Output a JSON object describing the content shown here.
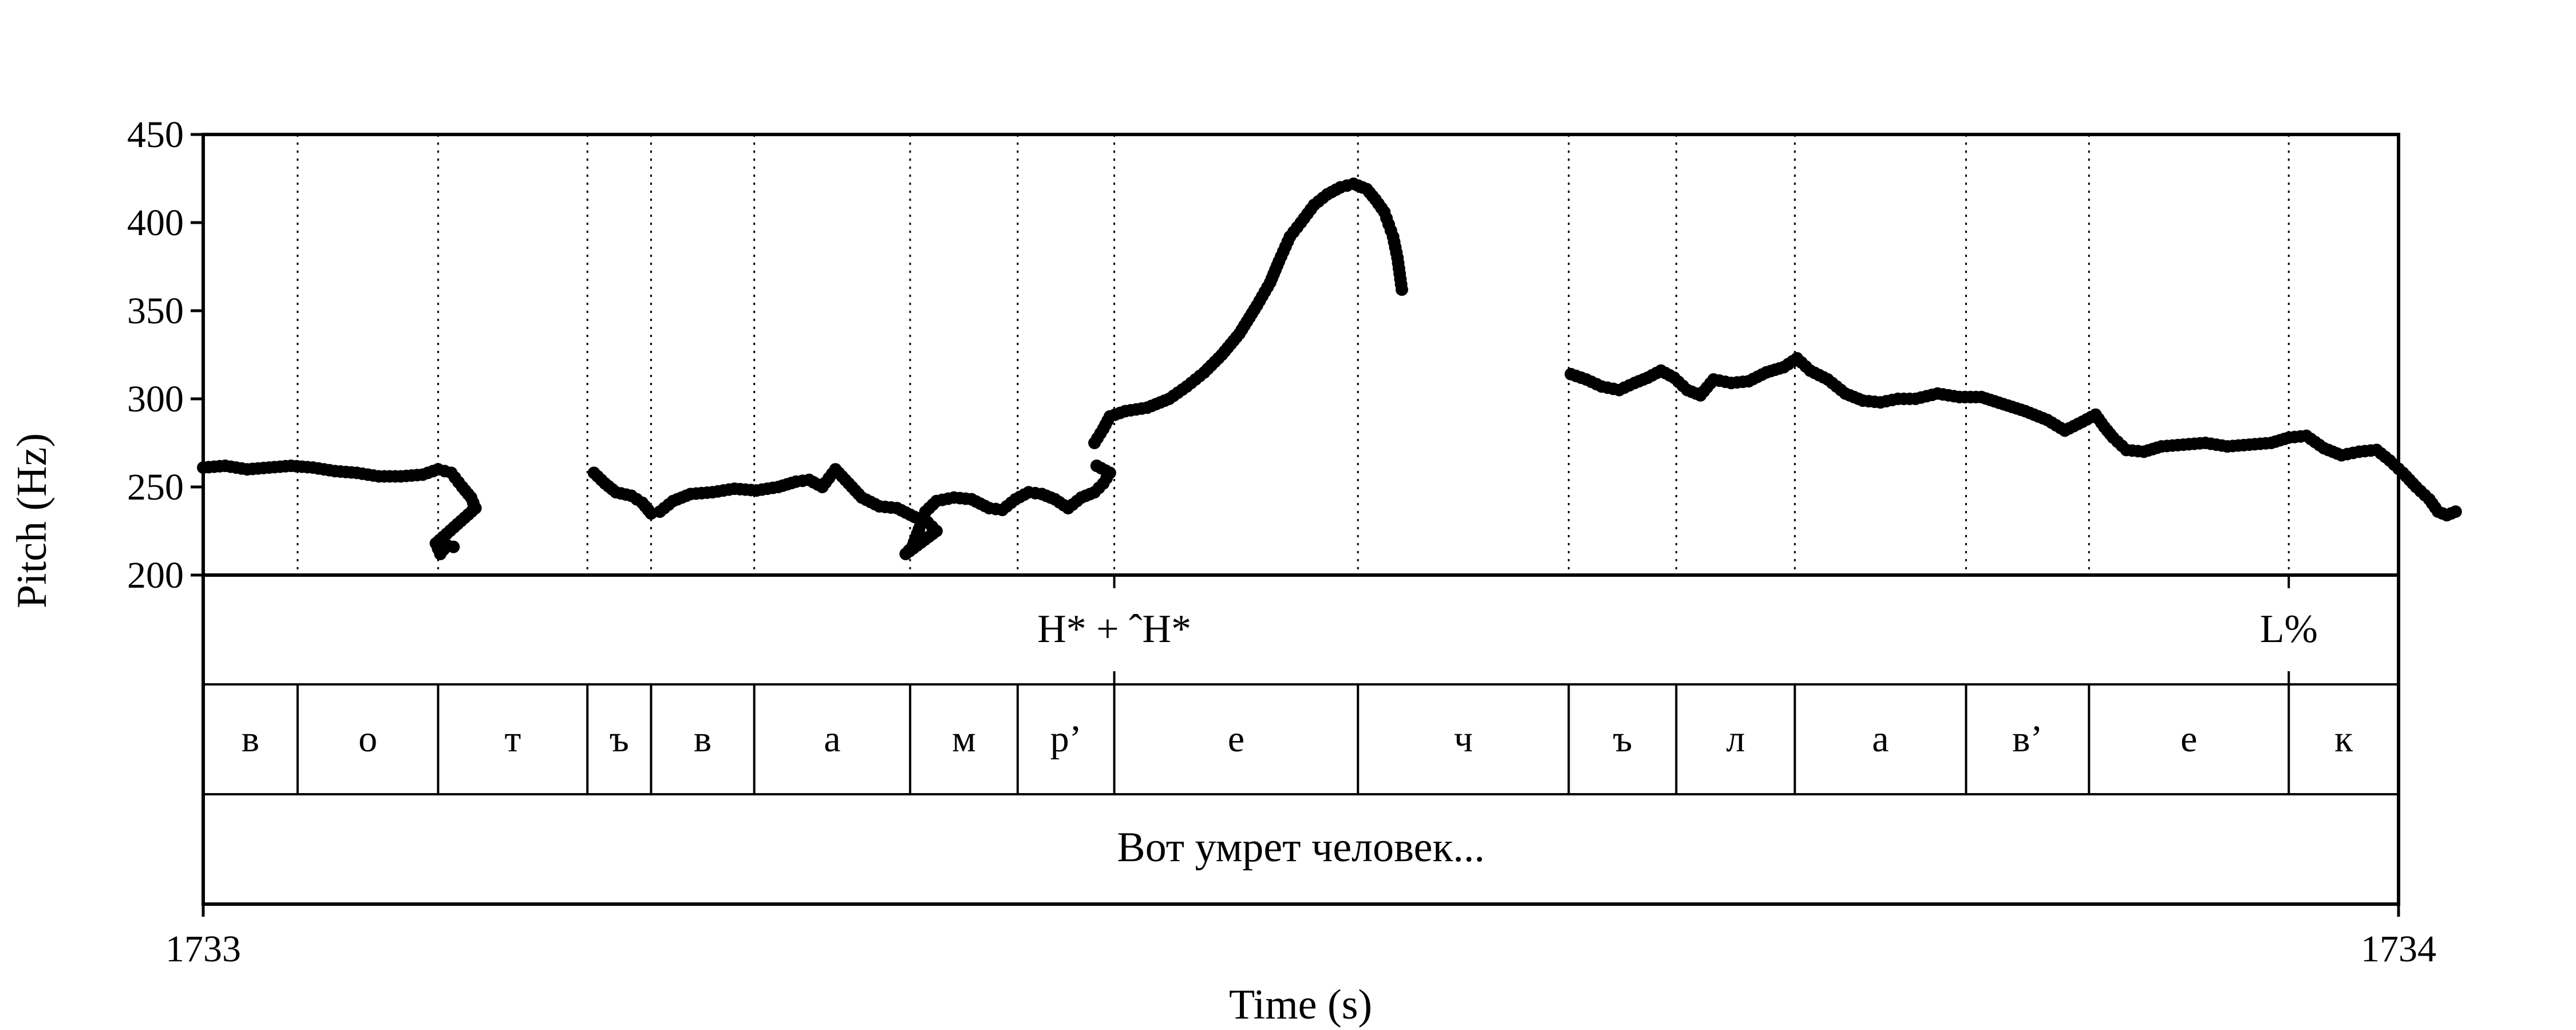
{
  "chart_data": {
    "type": "scatter",
    "title": "",
    "xlabel": "Time (s)",
    "ylabel": "Pitch (Hz)",
    "xlim": [
      1733,
      1734
    ],
    "ylim": [
      200,
      450
    ],
    "x_tick_labels": [
      "1733",
      "1734"
    ],
    "y_tick_labels": [
      "200",
      "250",
      "300",
      "350",
      "400",
      "450"
    ],
    "grid": false,
    "marker_color": "#000000",
    "segment_tier": [
      {
        "label": "в",
        "start": 1733.0,
        "end": 1733.043
      },
      {
        "label": "о",
        "start": 1733.043,
        "end": 1733.107
      },
      {
        "label": "т",
        "start": 1733.107,
        "end": 1733.175
      },
      {
        "label": "ъ",
        "start": 1733.175,
        "end": 1733.204
      },
      {
        "label": "в",
        "start": 1733.204,
        "end": 1733.251
      },
      {
        "label": "а",
        "start": 1733.251,
        "end": 1733.322
      },
      {
        "label": "м",
        "start": 1733.322,
        "end": 1733.371
      },
      {
        "label": "р’",
        "start": 1733.371,
        "end": 1733.415
      },
      {
        "label": "е",
        "start": 1733.415,
        "end": 1733.526
      },
      {
        "label": "ч",
        "start": 1733.526,
        "end": 1733.622
      },
      {
        "label": "ъ",
        "start": 1733.622,
        "end": 1733.671
      },
      {
        "label": "л",
        "start": 1733.671,
        "end": 1733.725
      },
      {
        "label": "а",
        "start": 1733.725,
        "end": 1733.803
      },
      {
        "label": "в’",
        "start": 1733.803,
        "end": 1733.859
      },
      {
        "label": "е",
        "start": 1733.859,
        "end": 1733.95
      },
      {
        "label": "к",
        "start": 1733.95,
        "end": 1734.0
      }
    ],
    "tone_tier": [
      {
        "label": "H* + ˆH*",
        "time": 1733.415
      },
      {
        "label": "L%",
        "time": 1733.95
      }
    ],
    "sentence_tier": [
      {
        "label": "Вот умрет человек...",
        "start": 1733.0,
        "end": 1734.0
      }
    ],
    "pitch_contour": [
      [
        [
          1733.0,
          261
        ],
        [
          1733.01,
          262
        ],
        [
          1733.02,
          260
        ],
        [
          1733.03,
          261
        ],
        [
          1733.04,
          262
        ],
        [
          1733.05,
          261
        ],
        [
          1733.06,
          259
        ],
        [
          1733.07,
          258
        ],
        [
          1733.08,
          256
        ],
        [
          1733.09,
          256
        ],
        [
          1733.1,
          257
        ],
        [
          1733.107,
          260
        ],
        [
          1733.113,
          258
        ],
        [
          1733.118,
          250
        ],
        [
          1733.122,
          244
        ],
        [
          1733.124,
          238
        ],
        [
          1733.106,
          218
        ],
        [
          1733.108,
          212
        ],
        [
          1733.111,
          217
        ],
        [
          1733.114,
          216
        ]
      ],
      [
        [
          1733.178,
          258
        ],
        [
          1733.183,
          252
        ],
        [
          1733.188,
          247
        ],
        [
          1733.195,
          245
        ],
        [
          1733.2,
          241
        ],
        [
          1733.204,
          235
        ],
        [
          1733.208,
          236
        ],
        [
          1733.214,
          242
        ],
        [
          1733.222,
          246
        ],
        [
          1733.232,
          247
        ],
        [
          1733.242,
          249
        ],
        [
          1733.252,
          248
        ],
        [
          1733.262,
          250
        ],
        [
          1733.27,
          253
        ],
        [
          1733.276,
          254
        ],
        [
          1733.282,
          250
        ],
        [
          1733.288,
          260
        ],
        [
          1733.294,
          252
        ],
        [
          1733.3,
          244
        ],
        [
          1733.308,
          239
        ],
        [
          1733.316,
          238
        ],
        [
          1733.324,
          233
        ],
        [
          1733.33,
          230
        ],
        [
          1733.334,
          225
        ],
        [
          1733.32,
          212
        ],
        [
          1733.323,
          216
        ],
        [
          1733.326,
          226
        ],
        [
          1733.329,
          236
        ],
        [
          1733.334,
          242
        ],
        [
          1733.342,
          244
        ],
        [
          1733.35,
          243
        ],
        [
          1733.358,
          238
        ],
        [
          1733.364,
          237
        ],
        [
          1733.37,
          243
        ],
        [
          1733.376,
          247
        ],
        [
          1733.382,
          246
        ],
        [
          1733.388,
          243
        ],
        [
          1733.394,
          238
        ],
        [
          1733.4,
          244
        ],
        [
          1733.406,
          247
        ],
        [
          1733.41,
          252
        ],
        [
          1733.413,
          258
        ],
        [
          1733.407,
          262
        ]
      ],
      [
        [
          1733.406,
          275
        ],
        [
          1733.41,
          283
        ],
        [
          1733.413,
          290
        ],
        [
          1733.42,
          293
        ],
        [
          1733.43,
          295
        ],
        [
          1733.44,
          300
        ],
        [
          1733.448,
          307
        ],
        [
          1733.456,
          315
        ],
        [
          1733.464,
          325
        ],
        [
          1733.472,
          337
        ],
        [
          1733.48,
          353
        ],
        [
          1733.486,
          366
        ],
        [
          1733.49,
          378
        ],
        [
          1733.495,
          392
        ],
        [
          1733.5,
          400
        ],
        [
          1733.506,
          410
        ],
        [
          1733.512,
          416
        ],
        [
          1733.518,
          420
        ],
        [
          1733.524,
          422
        ],
        [
          1733.53,
          419
        ],
        [
          1733.534,
          413
        ],
        [
          1733.538,
          406
        ],
        [
          1733.54,
          399
        ],
        [
          1733.542,
          392
        ],
        [
          1733.544,
          380
        ],
        [
          1733.546,
          362
        ]
      ],
      [
        [
          1733.623,
          314
        ],
        [
          1733.63,
          311
        ],
        [
          1733.637,
          307
        ],
        [
          1733.645,
          305
        ],
        [
          1733.652,
          309
        ],
        [
          1733.658,
          312
        ],
        [
          1733.664,
          316
        ],
        [
          1733.67,
          312
        ],
        [
          1733.676,
          305
        ],
        [
          1733.682,
          302
        ],
        [
          1733.688,
          311
        ],
        [
          1733.696,
          309
        ],
        [
          1733.704,
          310
        ],
        [
          1733.712,
          315
        ],
        [
          1733.72,
          318
        ],
        [
          1733.726,
          323
        ],
        [
          1733.732,
          316
        ],
        [
          1733.74,
          311
        ],
        [
          1733.748,
          303
        ],
        [
          1733.756,
          299
        ],
        [
          1733.764,
          298
        ],
        [
          1733.772,
          300
        ],
        [
          1733.78,
          300
        ],
        [
          1733.79,
          303
        ],
        [
          1733.8,
          301
        ],
        [
          1733.81,
          301
        ],
        [
          1733.82,
          297
        ],
        [
          1733.83,
          293
        ],
        [
          1733.84,
          288
        ],
        [
          1733.848,
          282
        ],
        [
          1733.856,
          287
        ],
        [
          1733.862,
          291
        ],
        [
          1733.866,
          284
        ],
        [
          1733.87,
          278
        ],
        [
          1733.876,
          271
        ],
        [
          1733.884,
          270
        ],
        [
          1733.892,
          273
        ],
        [
          1733.902,
          274
        ],
        [
          1733.912,
          275
        ],
        [
          1733.922,
          273
        ],
        [
          1733.932,
          274
        ],
        [
          1733.942,
          275
        ],
        [
          1733.95,
          278
        ],
        [
          1733.958,
          279
        ],
        [
          1733.966,
          272
        ],
        [
          1733.974,
          268
        ],
        [
          1733.982,
          270
        ],
        [
          1733.99,
          271
        ],
        [
          1733.996,
          265
        ],
        [
          1734.002,
          258
        ],
        [
          1734.008,
          250
        ],
        [
          1734.014,
          243
        ],
        [
          1734.018,
          236
        ],
        [
          1734.022,
          234
        ],
        [
          1734.026,
          236
        ]
      ]
    ]
  }
}
